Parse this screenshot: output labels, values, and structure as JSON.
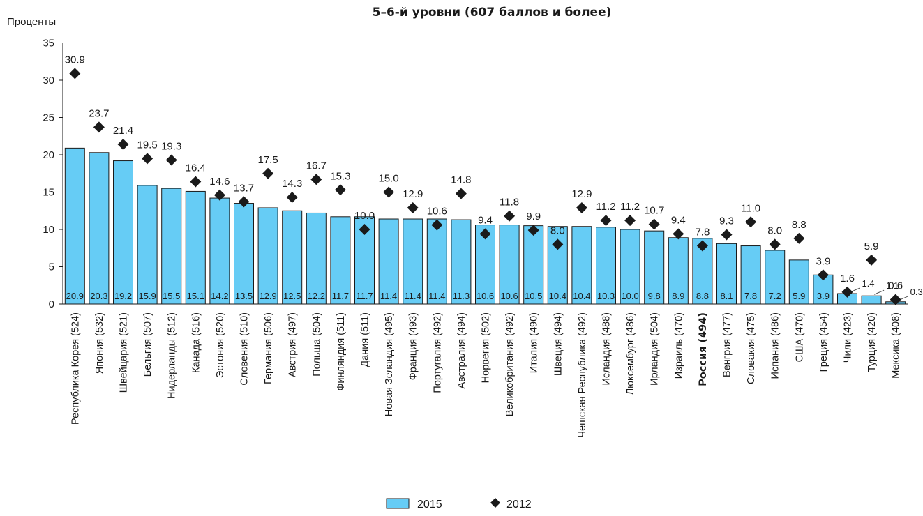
{
  "chart_data": {
    "type": "bar",
    "title": "5–6-й уровни (607 баллов и более)",
    "ylabel": "Проценты",
    "ylim": [
      0,
      35
    ],
    "yticks": [
      0,
      5,
      10,
      15,
      20,
      25,
      30,
      35
    ],
    "grid": false,
    "legend_position": "bottom",
    "highlight_category": "Россия (494)",
    "colors": {
      "bar": "#66ccf5",
      "bar_edge": "#1a1a1a",
      "marker": "#1a1a1a"
    },
    "categories": [
      "Республика Корея (524)",
      "Япония (532)",
      "Швейцария (521)",
      "Бельгия (507)",
      "Нидерланды (512)",
      "Канада (516)",
      "Эстония (520)",
      "Словения (510)",
      "Германия (506)",
      "Австрия (497)",
      "Польша (504)",
      "Финляндия (511)",
      "Дания (511)",
      "Новая Зеландия (495)",
      "Франция (493)",
      "Португалия (492)",
      "Австралия (494)",
      "Норвегия (502)",
      "Великобритания (492)",
      "Италия (490)",
      "Швеция (494)",
      "Чешская Республика (492)",
      "Исландия (488)",
      "Люксембург (486)",
      "Ирландия (504)",
      "Израиль (470)",
      "Россия (494)",
      "Венгрия (477)",
      "Словакия (475)",
      "Испания (486)",
      "США (470)",
      "Греция (454)",
      "Чили (423)",
      "Турция (420)",
      "Мексика (408)"
    ],
    "series": [
      {
        "name": "2015",
        "type": "bar",
        "values": [
          20.9,
          20.3,
          19.2,
          15.9,
          15.5,
          15.1,
          14.2,
          13.5,
          12.9,
          12.5,
          12.2,
          11.7,
          11.7,
          11.4,
          11.4,
          11.4,
          11.3,
          10.6,
          10.6,
          10.5,
          10.4,
          10.4,
          10.3,
          10.0,
          9.8,
          8.9,
          8.8,
          8.1,
          7.8,
          7.2,
          5.9,
          3.9,
          1.4,
          1.1,
          0.3
        ],
        "labels": [
          "20.9",
          "20.3",
          "19.2",
          "15.9",
          "15.5",
          "15.1",
          "14.2",
          "13.5",
          "12.9",
          "12.5",
          "12.2",
          "11.7",
          "11.7",
          "11.4",
          "11.4",
          "11.4",
          "11.3",
          "10.6",
          "10.6",
          "10.5",
          "10.4",
          "10.4",
          "10.3",
          "10.0",
          "9.8",
          "8.9",
          "8.8",
          "8.1",
          "7.8",
          "7.2",
          "5.9",
          "3.9",
          "1.4",
          "1.1",
          "0.3"
        ]
      },
      {
        "name": "2012",
        "type": "scatter",
        "marker": "diamond",
        "values": [
          30.9,
          23.7,
          21.4,
          19.5,
          19.3,
          16.4,
          14.6,
          13.7,
          17.5,
          14.3,
          16.7,
          15.3,
          10.0,
          15.0,
          12.9,
          10.6,
          14.8,
          9.4,
          11.8,
          9.9,
          8.0,
          12.9,
          11.2,
          11.2,
          10.7,
          9.4,
          7.8,
          9.3,
          11.0,
          8.0,
          8.8,
          3.9,
          1.6,
          5.9,
          0.6
        ],
        "labels": [
          "30.9",
          "23.7",
          "21.4",
          "19.5",
          "19.3",
          "16.4",
          "14.6",
          "13.7",
          "17.5",
          "14.3",
          "16.7",
          "15.3",
          "10.0",
          "15.0",
          "12.9",
          "10.6",
          "14.8",
          "9.4",
          "11.8",
          "9.9",
          "8.0",
          "12.9",
          "11.2",
          "11.2",
          "10.7",
          "9.4",
          "7.8",
          "9.3",
          "11.0",
          "8.0",
          "8.8",
          "3.9",
          "1.6",
          "5.9",
          "0.6"
        ]
      }
    ]
  }
}
